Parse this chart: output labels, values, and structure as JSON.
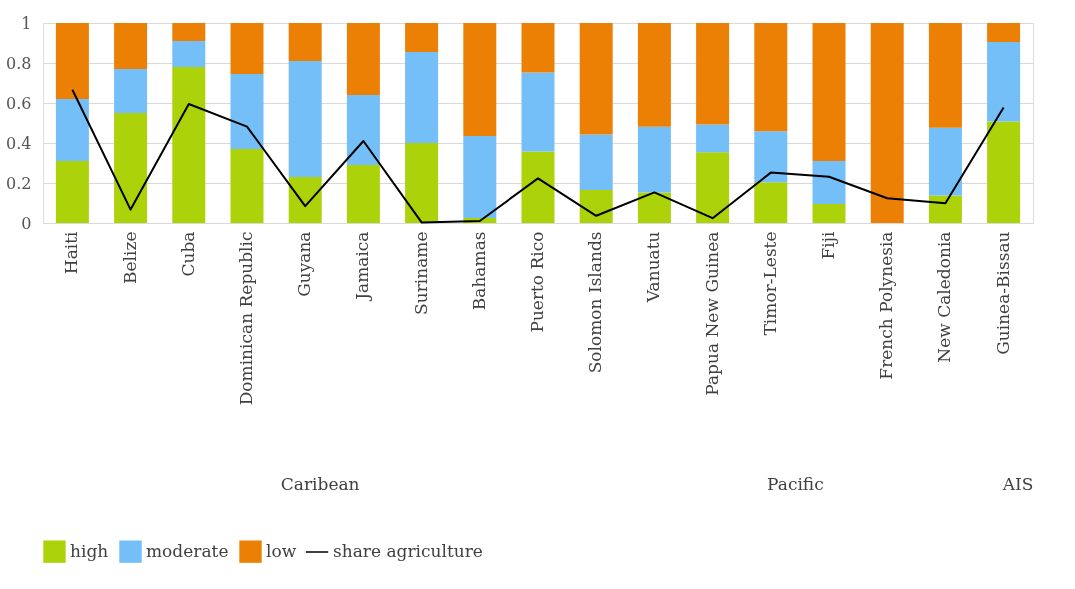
{
  "chart_data": {
    "type": "bar",
    "stacked": true,
    "categories": [
      "Haiti",
      "Belize",
      "Cuba",
      "Dominican Republic",
      "Guyana",
      "Jamaica",
      "Suriname",
      "Bahamas",
      "Puerto Rico",
      "Solomon Islands",
      "Vanuatu",
      "Papua New Guinea",
      "Timor-Leste",
      "Fiji",
      "French Polynesia",
      "New Caledonia",
      "Guinea-Bissau"
    ],
    "series": [
      {
        "name": "high",
        "color": "#acd20a",
        "values": [
          0.31,
          0.55,
          0.78,
          0.37,
          0.23,
          0.29,
          0.4,
          0.025,
          0.357,
          0.165,
          0.153,
          0.354,
          0.204,
          0.095,
          0,
          0.138,
          0.507
        ]
      },
      {
        "name": "moderate",
        "color": "#74bff8",
        "values": [
          0.31,
          0.22,
          0.13,
          0.375,
          0.58,
          0.35,
          0.455,
          0.41,
          0.395,
          0.277,
          0.328,
          0.139,
          0.255,
          0.215,
          0,
          0.338,
          0.398
        ]
      },
      {
        "name": "low",
        "color": "#eb8005",
        "values": [
          0.38,
          0.23,
          0.09,
          0.255,
          0.19,
          0.36,
          0.145,
          0.565,
          0.248,
          0.558,
          0.519,
          0.507,
          0.541,
          0.69,
          1,
          0.524,
          0.095
        ]
      },
      {
        "name": "share agriculture",
        "type": "line",
        "color": "#000000",
        "values": [
          0.666,
          0.067,
          0.595,
          0.482,
          0.084,
          0.41,
          0.003,
          0.01,
          0.223,
          0.036,
          0.153,
          0.024,
          0.252,
          0.231,
          0.124,
          0.099,
          0.578
        ]
      }
    ],
    "ylim": [
      0,
      1
    ],
    "yticks": [
      0,
      0.2,
      0.4,
      0.6,
      0.8,
      1
    ],
    "grid": "y",
    "legend": "bottom",
    "annotations": [
      "Caribean",
      "Pacific",
      "AIS"
    ]
  }
}
